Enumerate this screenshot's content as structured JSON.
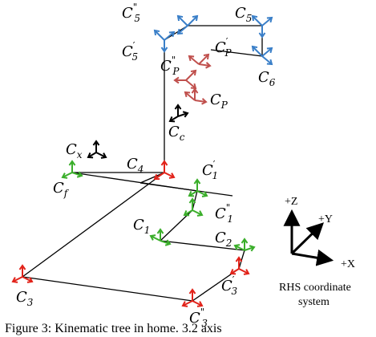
{
  "colors": {
    "line": "#000000",
    "frame_blue": "#3a7fc8",
    "frame_red": "#e2231a",
    "frame_green": "#3aae2a",
    "frame_pink": "#c0504d",
    "frame_black": "#000000"
  },
  "labels": {
    "c5pp": {
      "base": "C",
      "sub": "5",
      "sup": "\""
    },
    "c5": {
      "base": "C",
      "sub": "5",
      "sup": ""
    },
    "c5p": {
      "base": "C",
      "sub": "5",
      "sup": "′"
    },
    "cpp": {
      "base": "C",
      "sub": "P",
      "sup": "′"
    },
    "cppp": {
      "base": "C",
      "sub": "P",
      "sup": "\""
    },
    "c6": {
      "base": "C",
      "sub": "6",
      "sup": ""
    },
    "cp": {
      "base": "C",
      "sub": "P",
      "sup": ""
    },
    "cc": {
      "base": "C",
      "sub": "c",
      "sup": ""
    },
    "cx": {
      "base": "C",
      "sub": "x",
      "sup": ""
    },
    "c4": {
      "base": "C",
      "sub": "4",
      "sup": ""
    },
    "cf": {
      "base": "C",
      "sub": "f",
      "sup": ""
    },
    "c1p": {
      "base": "C",
      "sub": "1",
      "sup": "′"
    },
    "c1pp": {
      "base": "C",
      "sub": "1",
      "sup": "\""
    },
    "c1": {
      "base": "C",
      "sub": "1",
      "sup": ""
    },
    "c2": {
      "base": "C",
      "sub": "2",
      "sup": ""
    },
    "c3p": {
      "base": "C",
      "sub": "3",
      "sup": "′"
    },
    "c3": {
      "base": "C",
      "sub": "3",
      "sup": ""
    },
    "c3pp": {
      "base": "C",
      "sub": "3",
      "sup": "\""
    }
  },
  "legend": {
    "z": "+Z",
    "y": "+Y",
    "x": "+X",
    "title_line1": "RHS coordinate",
    "title_line2": "system"
  },
  "caption": "Figure 3: Kinematic tree in home. 3.2 axis"
}
